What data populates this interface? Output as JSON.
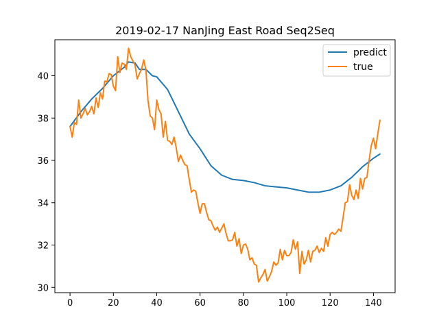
{
  "chart_data": {
    "type": "line",
    "title": "2019-02-17 NanJing East Road Seq2Seq",
    "xlabel": "",
    "ylabel": "",
    "xlim": [
      -7,
      150
    ],
    "ylim": [
      29.75,
      41.7
    ],
    "xticks": [
      0,
      20,
      40,
      60,
      80,
      100,
      120,
      140
    ],
    "yticks": [
      30,
      32,
      34,
      36,
      38,
      40
    ],
    "grid": false,
    "legend_position": "top-right",
    "series": [
      {
        "name": "predict",
        "color": "#1f77b4",
        "x": [
          0,
          5,
          10,
          15,
          20,
          25,
          27,
          30,
          32,
          35,
          38,
          40,
          45,
          50,
          55,
          60,
          65,
          70,
          75,
          80,
          85,
          90,
          95,
          100,
          105,
          110,
          115,
          120,
          125,
          130,
          135,
          140,
          143
        ],
        "y": [
          37.6,
          38.3,
          38.9,
          39.4,
          40.0,
          40.4,
          40.65,
          40.6,
          40.3,
          40.3,
          40.0,
          39.95,
          39.35,
          38.3,
          37.25,
          36.55,
          35.75,
          35.3,
          35.1,
          35.05,
          34.95,
          34.8,
          34.75,
          34.7,
          34.6,
          34.5,
          34.5,
          34.6,
          34.8,
          35.2,
          35.7,
          36.1,
          36.3
        ]
      },
      {
        "name": "true",
        "color": "#ff7f0e",
        "x": [
          0,
          1,
          2,
          3,
          4,
          5,
          6,
          7,
          8,
          9,
          10,
          11,
          12,
          13,
          14,
          15,
          16,
          17,
          18,
          19,
          20,
          21,
          22,
          23,
          24,
          25,
          26,
          27,
          28,
          29,
          30,
          31,
          32,
          33,
          34,
          35,
          36,
          37,
          38,
          39,
          40,
          41,
          42,
          43,
          44,
          45,
          46,
          47,
          48,
          49,
          50,
          51,
          52,
          53,
          54,
          55,
          56,
          57,
          58,
          59,
          60,
          61,
          62,
          63,
          64,
          65,
          66,
          67,
          68,
          69,
          70,
          71,
          72,
          73,
          74,
          75,
          76,
          77,
          78,
          79,
          80,
          81,
          82,
          83,
          84,
          85,
          86,
          87,
          88,
          89,
          90,
          91,
          92,
          93,
          94,
          95,
          96,
          97,
          98,
          99,
          100,
          101,
          102,
          103,
          104,
          105,
          106,
          107,
          108,
          109,
          110,
          111,
          112,
          113,
          114,
          115,
          116,
          117,
          118,
          119,
          120,
          121,
          122,
          123,
          124,
          125,
          126,
          127,
          128,
          129,
          130,
          131,
          132,
          133,
          134,
          135,
          136,
          137,
          138,
          139,
          140,
          141,
          142,
          143
        ],
        "y": [
          37.6,
          37.1,
          37.8,
          37.7,
          38.85,
          38.0,
          38.2,
          38.45,
          38.15,
          38.3,
          38.55,
          38.2,
          38.95,
          38.5,
          39.2,
          38.9,
          39.75,
          39.7,
          40.1,
          40.05,
          39.5,
          39.3,
          40.9,
          40.15,
          40.6,
          40.55,
          40.3,
          41.3,
          40.9,
          40.7,
          40.5,
          39.85,
          40.1,
          40.3,
          40.75,
          40.3,
          38.8,
          38.1,
          38.0,
          37.45,
          38.85,
          38.4,
          38.2,
          37.1,
          37.85,
          36.95,
          36.9,
          36.75,
          37.1,
          36.6,
          35.95,
          36.25,
          36.0,
          35.8,
          35.75,
          35.1,
          34.5,
          34.6,
          34.55,
          34.0,
          33.5,
          33.95,
          33.95,
          33.55,
          33.2,
          33.15,
          32.9,
          32.7,
          32.85,
          32.6,
          32.8,
          33.0,
          32.55,
          32.2,
          32.2,
          32.25,
          32.6,
          31.95,
          32.3,
          31.6,
          32.0,
          32.05,
          31.8,
          31.3,
          31.4,
          31.1,
          31.05,
          30.25,
          30.45,
          30.6,
          30.85,
          30.3,
          30.5,
          30.75,
          31.2,
          31.05,
          31.15,
          31.8,
          31.3,
          31.75,
          31.5,
          31.5,
          31.65,
          32.25,
          31.8,
          32.15,
          30.65,
          31.7,
          31.1,
          31.3,
          31.75,
          31.2,
          31.7,
          31.75,
          31.95,
          31.65,
          31.85,
          31.7,
          32.35,
          31.95,
          32.5,
          32.6,
          32.5,
          32.6,
          32.75,
          32.65,
          33.3,
          34.0,
          34.05,
          34.85,
          34.35,
          34.15,
          34.6,
          34.2,
          35.15,
          34.65,
          35.15,
          35.2,
          36.0,
          36.7,
          37.05,
          36.55,
          37.25,
          37.9
        ]
      }
    ]
  }
}
